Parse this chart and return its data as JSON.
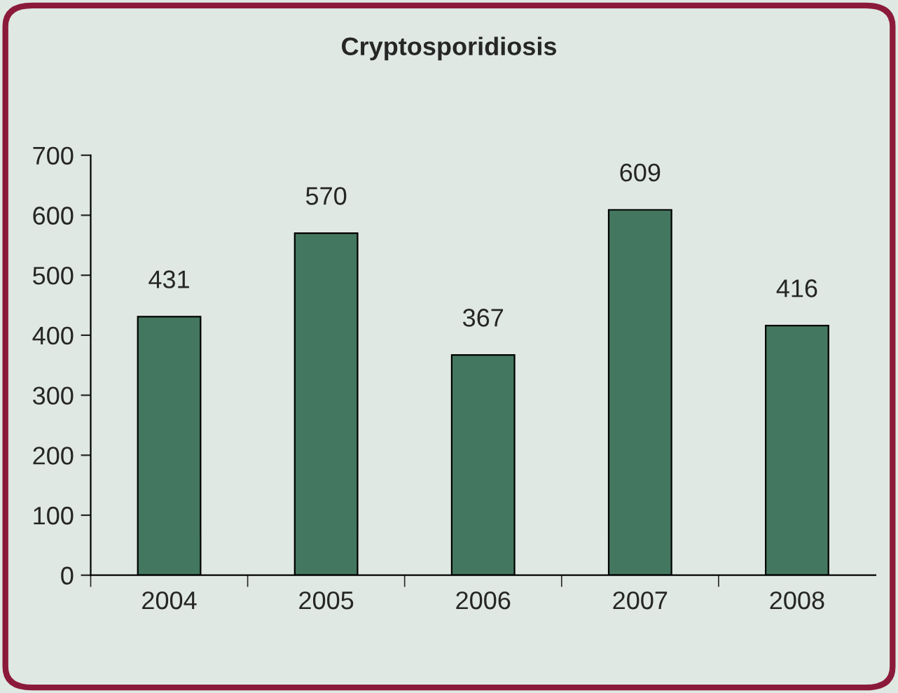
{
  "chart_data": {
    "type": "bar",
    "title": "Cryptosporidiosis",
    "categories": [
      "2004",
      "2005",
      "2006",
      "2007",
      "2008"
    ],
    "values": [
      431,
      570,
      367,
      609,
      416
    ],
    "color": "#44775f",
    "ylim": [
      0,
      700
    ],
    "yticks": [
      0,
      100,
      200,
      300,
      400,
      500,
      600,
      700
    ],
    "data_labels": true,
    "grid": false,
    "legend": false
  }
}
